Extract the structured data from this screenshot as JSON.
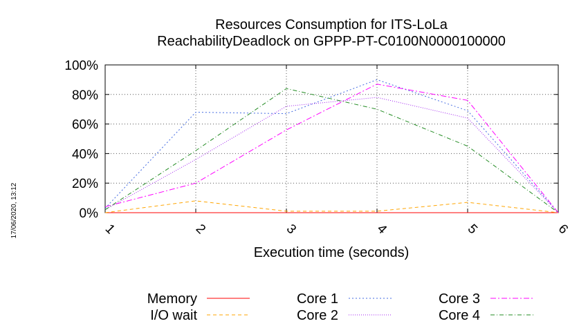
{
  "timestamp": "17/06/2020, 13:12",
  "chart_data": {
    "type": "line",
    "title": "Resources Consumption for ITS-LoLa",
    "subtitle": "ReachabilityDeadlock on GPPP-PT-C0100N0000100000",
    "xlabel": "Execution time (seconds)",
    "ylabel": "",
    "xlim": [
      1,
      6
    ],
    "ylim": [
      0,
      100
    ],
    "x_ticks": [
      "1",
      "2",
      "3",
      "4",
      "5",
      "6"
    ],
    "y_ticks": [
      "0%",
      "20%",
      "40%",
      "60%",
      "80%",
      "100%"
    ],
    "grid": true,
    "legend_position": "bottom",
    "x": [
      1,
      2,
      3,
      4,
      5,
      6
    ],
    "series": [
      {
        "name": "Memory",
        "color": "#ff0000",
        "dash": "solid",
        "values": [
          0,
          0,
          0,
          0,
          0,
          0
        ]
      },
      {
        "name": "I/O wait",
        "color": "#ffa500",
        "dash": "dashed",
        "values": [
          0,
          8,
          1,
          1,
          7,
          0
        ]
      },
      {
        "name": "Core 1",
        "color": "#4169e1",
        "dash": "dotted",
        "values": [
          3,
          68,
          67,
          90,
          69,
          0
        ]
      },
      {
        "name": "Core 2",
        "color": "#a020f0",
        "dash": "dotted2",
        "values": [
          2,
          36,
          72,
          78,
          64,
          0
        ]
      },
      {
        "name": "Core 3",
        "color": "#ff00ff",
        "dash": "dashdot",
        "values": [
          4,
          20,
          56,
          87,
          76,
          0
        ]
      },
      {
        "name": "Core 4",
        "color": "#228b22",
        "dash": "dashdot2",
        "values": [
          2,
          42,
          84,
          70,
          45,
          0
        ]
      }
    ]
  }
}
